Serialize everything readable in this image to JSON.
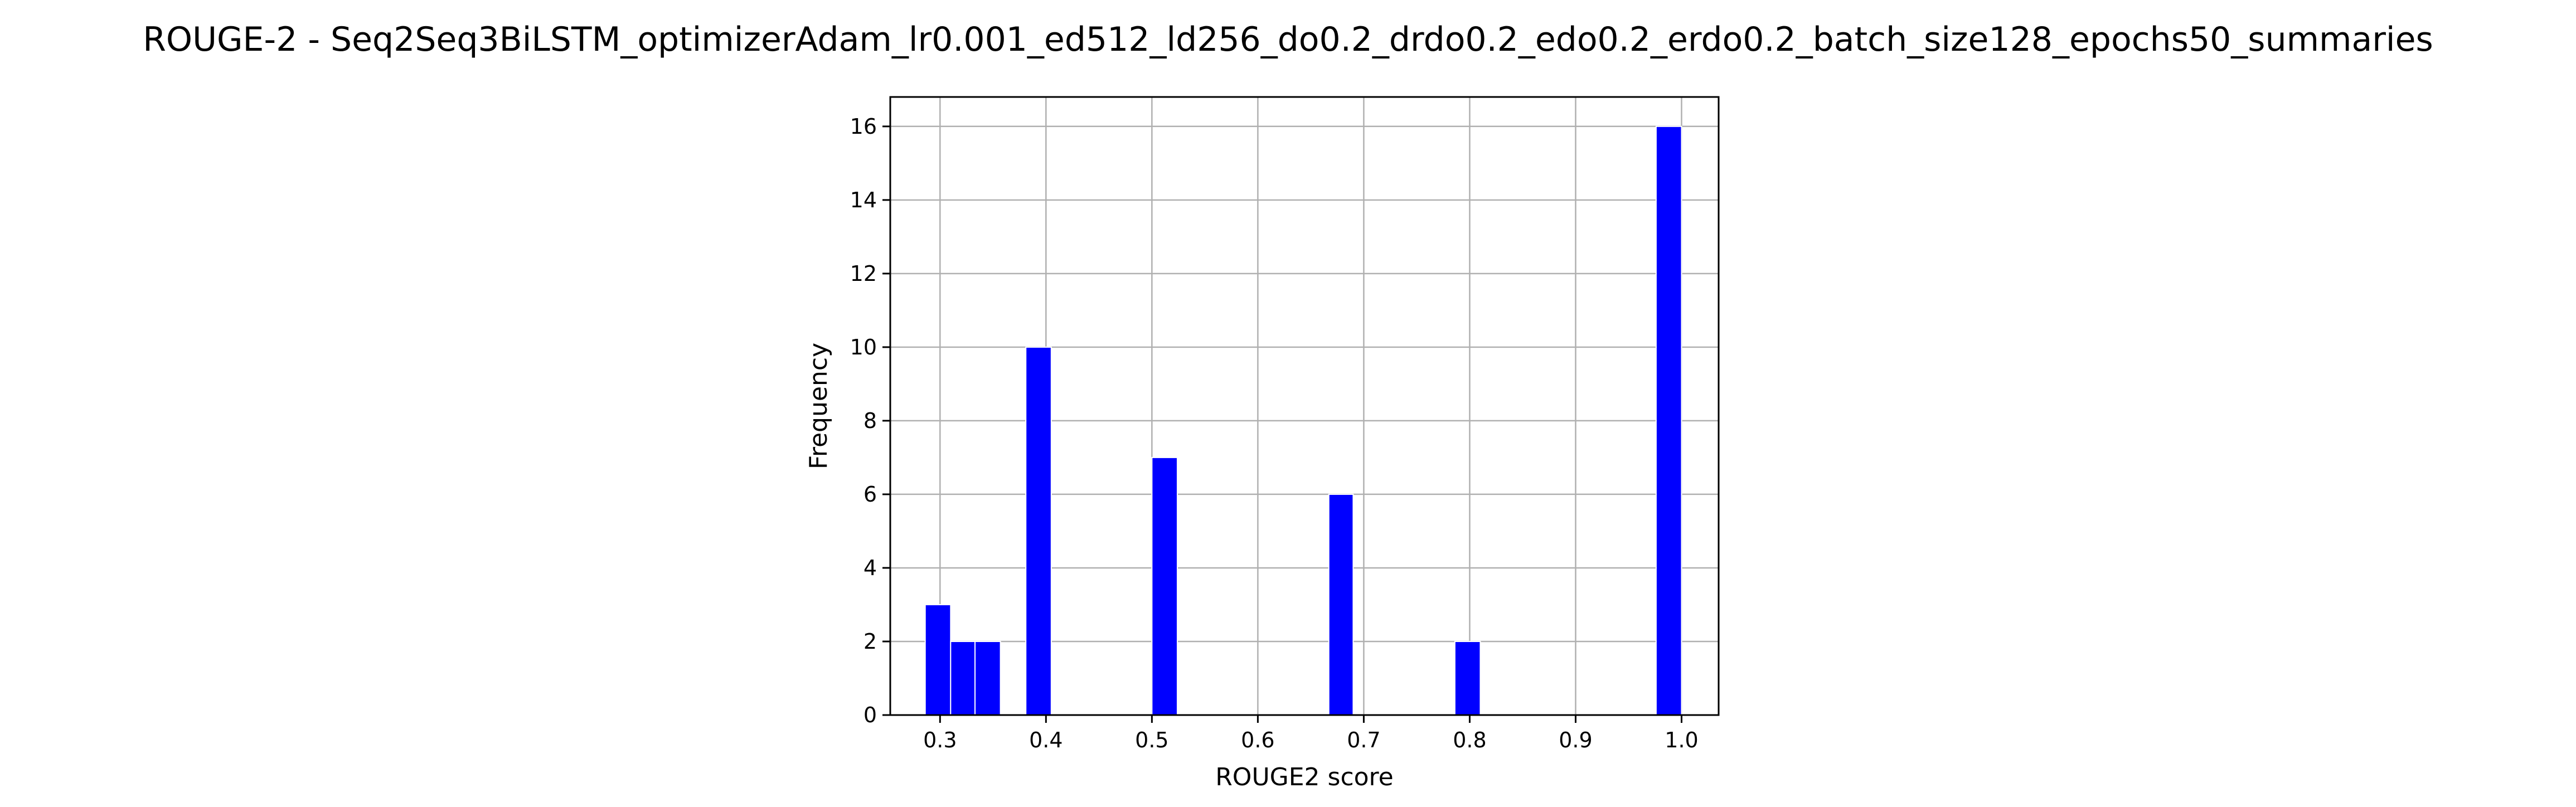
{
  "chart_data": {
    "type": "bar",
    "title": "ROUGE-2 - Seq2Seq3BiLSTM_optimizerAdam_lr0.001_ed512_ld256_do0.2_drdo0.2_edo0.2_erdo0.2_batch_size128_epochs50_summaries",
    "xlabel": "ROUGE2 score",
    "ylabel": "Frequency",
    "xlim": [
      0.253,
      1.035
    ],
    "ylim": [
      0,
      16.8
    ],
    "xticks": [
      0.3,
      0.4,
      0.5,
      0.6,
      0.7,
      0.8,
      0.9,
      1.0
    ],
    "xtick_labels": [
      "0.3",
      "0.4",
      "0.5",
      "0.6",
      "0.7",
      "0.8",
      "0.9",
      "1.0"
    ],
    "yticks": [
      0,
      2,
      4,
      6,
      8,
      10,
      12,
      14,
      16
    ],
    "ytick_labels": [
      "0",
      "2",
      "4",
      "6",
      "8",
      "10",
      "12",
      "14",
      "16"
    ],
    "grid": true,
    "bar_color": "#0000ff",
    "bars": [
      {
        "x0": 0.286,
        "x1": 0.31,
        "value": 3
      },
      {
        "x0": 0.31,
        "x1": 0.333,
        "value": 2
      },
      {
        "x0": 0.333,
        "x1": 0.357,
        "value": 2
      },
      {
        "x0": 0.381,
        "x1": 0.405,
        "value": 10
      },
      {
        "x0": 0.5,
        "x1": 0.524,
        "value": 7
      },
      {
        "x0": 0.667,
        "x1": 0.69,
        "value": 6
      },
      {
        "x0": 0.786,
        "x1": 0.81,
        "value": 2
      },
      {
        "x0": 0.976,
        "x1": 1.0,
        "value": 16
      }
    ]
  }
}
